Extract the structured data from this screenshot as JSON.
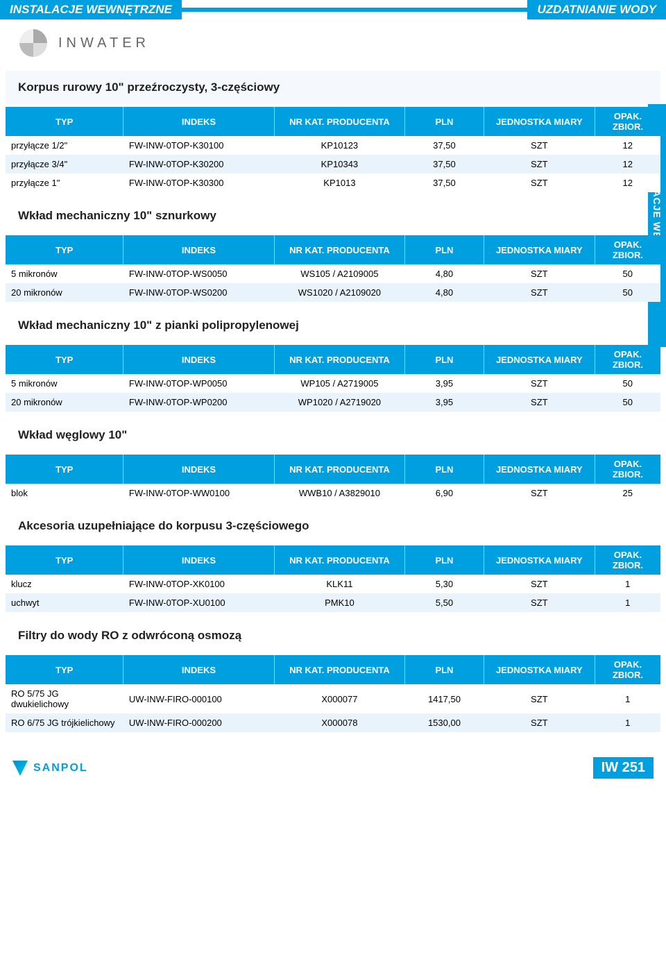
{
  "colors": {
    "primary": "#009fdf",
    "band": "#e8f3fb",
    "section_bg": "#f5f8fc",
    "text": "#000000",
    "white": "#ffffff"
  },
  "header": {
    "left": "INSTALACJE WEWNĘTRZNE",
    "right": "UZDATNIANIE WODY"
  },
  "brand": {
    "name": "INWATER"
  },
  "side_tab": "INSTALACJE WEWNĘTRZNE",
  "column_headers": {
    "typ": "TYP",
    "indeks": "INDEKS",
    "nrkat": "NR KAT. PRODUCENTA",
    "pln": "PLN",
    "jed": "JEDNOSTKA MIARY",
    "jed_short": "JEDNOSTKA MIARY",
    "opak": "OPAK. ZBIOR."
  },
  "sections": [
    {
      "title": "Korpus rurowy 10\" przeźroczysty, 3-częściowy",
      "shaded_title": true,
      "rows": [
        {
          "typ": "przyłącze 1/2\"",
          "indeks": "FW-INW-0TOP-K30100",
          "kat": "KP10123",
          "pln": "37,50",
          "jed": "SZT",
          "op": "12",
          "band": false
        },
        {
          "typ": "przyłącze 3/4\"",
          "indeks": "FW-INW-0TOP-K30200",
          "kat": "KP10343",
          "pln": "37,50",
          "jed": "SZT",
          "op": "12",
          "band": true
        },
        {
          "typ": "przyłącze 1\"",
          "indeks": "FW-INW-0TOP-K30300",
          "kat": "KP1013",
          "pln": "37,50",
          "jed": "SZT",
          "op": "12",
          "band": false
        }
      ]
    },
    {
      "title": "Wkład mechaniczny 10\" sznurkowy",
      "shaded_title": false,
      "rows": [
        {
          "typ": "5 mikronów",
          "indeks": "FW-INW-0TOP-WS0050",
          "kat": "WS105 / A2109005",
          "pln": "4,80",
          "jed": "SZT",
          "op": "50",
          "band": false
        },
        {
          "typ": "20 mikronów",
          "indeks": "FW-INW-0TOP-WS0200",
          "kat": "WS1020 / A2109020",
          "pln": "4,80",
          "jed": "SZT",
          "op": "50",
          "band": true
        }
      ]
    },
    {
      "title": "Wkład mechaniczny 10\" z pianki polipropylenowej",
      "shaded_title": false,
      "rows": [
        {
          "typ": "5 mikronów",
          "indeks": "FW-INW-0TOP-WP0050",
          "kat": "WP105 / A2719005",
          "pln": "3,95",
          "jed": "SZT",
          "op": "50",
          "band": false
        },
        {
          "typ": "20 mikronów",
          "indeks": "FW-INW-0TOP-WP0200",
          "kat": "WP1020 / A2719020",
          "pln": "3,95",
          "jed": "SZT",
          "op": "50",
          "band": true
        }
      ]
    },
    {
      "title": "Wkład węglowy 10\"",
      "shaded_title": false,
      "rows": [
        {
          "typ": "blok",
          "indeks": "FW-INW-0TOP-WW0100",
          "kat": "WWB10 / A3829010",
          "pln": "6,90",
          "jed": "SZT",
          "op": "25",
          "band": false
        }
      ]
    },
    {
      "title": "Akcesoria uzupełniające do korpusu 3-częściowego",
      "shaded_title": false,
      "rows": [
        {
          "typ": "klucz",
          "indeks": "FW-INW-0TOP-XK0100",
          "kat": "KLK11",
          "pln": "5,30",
          "jed": "SZT",
          "op": "1",
          "band": false
        },
        {
          "typ": "uchwyt",
          "indeks": "FW-INW-0TOP-XU0100",
          "kat": "PMK10",
          "pln": "5,50",
          "jed": "SZT",
          "op": "1",
          "band": true
        }
      ]
    },
    {
      "title": "Filtry do wody RO z odwróconą osmozą",
      "shaded_title": false,
      "rows": [
        {
          "typ": "RO 5/75 JG dwukielichowy",
          "indeks": "UW-INW-FIRO-000100",
          "kat": "X000077",
          "pln": "1417,50",
          "jed": "SZT",
          "op": "1",
          "band": false
        },
        {
          "typ": "RO 6/75 JG trójkielichowy",
          "indeks": "UW-INW-FIRO-000200",
          "kat": "X000078",
          "pln": "1530,00",
          "jed": "SZT",
          "op": "1",
          "band": true
        }
      ]
    }
  ],
  "footer": {
    "brand": "SANPOL",
    "page": "IW 251"
  }
}
